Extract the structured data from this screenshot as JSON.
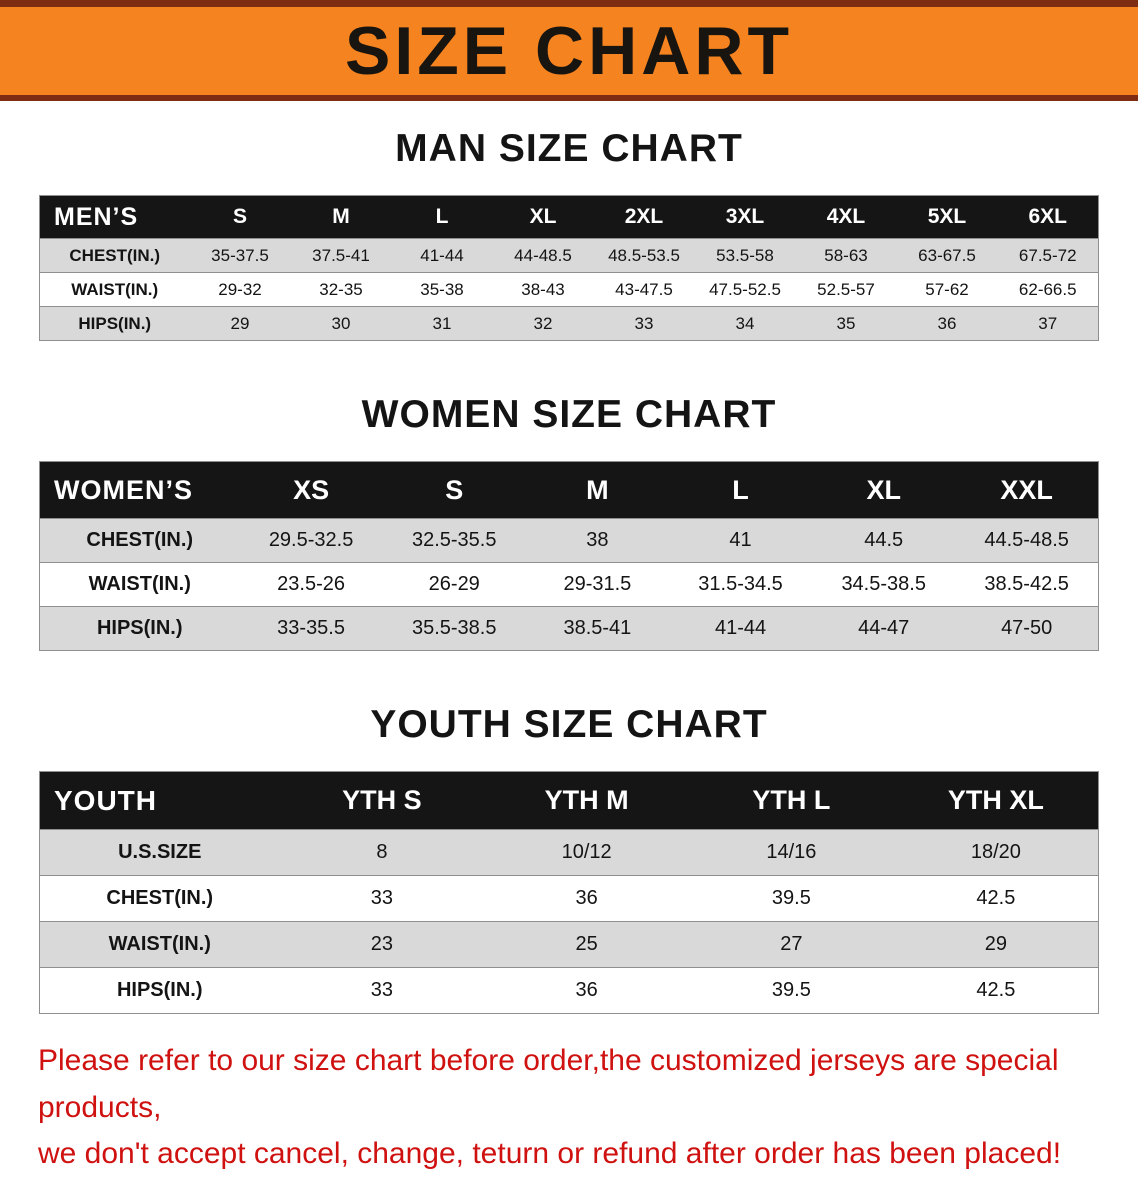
{
  "banner": {
    "title": "SIZE CHART",
    "bg_color": "#f5831f",
    "border_color": "#7f2d12"
  },
  "colors": {
    "header_bar": "#151515",
    "row_shade": "#d9d9d9",
    "note_red": "#cf1110"
  },
  "men": {
    "heading": "MAN SIZE CHART",
    "corner": "MEN’S",
    "sizes": [
      "S",
      "M",
      "L",
      "XL",
      "2XL",
      "3XL",
      "4XL",
      "5XL",
      "6XL"
    ],
    "rows": [
      {
        "label": "CHEST(IN.)",
        "values": [
          "35-37.5",
          "37.5-41",
          "41-44",
          "44-48.5",
          "48.5-53.5",
          "53.5-58",
          "58-63",
          "63-67.5",
          "67.5-72"
        ]
      },
      {
        "label": "WAIST(IN.)",
        "values": [
          "29-32",
          "32-35",
          "35-38",
          "38-43",
          "43-47.5",
          "47.5-52.5",
          "52.5-57",
          "57-62",
          "62-66.5"
        ]
      },
      {
        "label": "HIPS(IN.)",
        "values": [
          "29",
          "30",
          "31",
          "32",
          "33",
          "34",
          "35",
          "36",
          "37"
        ]
      }
    ]
  },
  "women": {
    "heading": "WOMEN SIZE CHART",
    "corner": "WOMEN’S",
    "sizes": [
      "XS",
      "S",
      "M",
      "L",
      "XL",
      "XXL"
    ],
    "rows": [
      {
        "label": "CHEST(IN.)",
        "values": [
          "29.5-32.5",
          "32.5-35.5",
          "38",
          "41",
          "44.5",
          "44.5-48.5"
        ]
      },
      {
        "label": "WAIST(IN.)",
        "values": [
          "23.5-26",
          "26-29",
          "29-31.5",
          "31.5-34.5",
          "34.5-38.5",
          "38.5-42.5"
        ]
      },
      {
        "label": "HIPS(IN.)",
        "values": [
          "33-35.5",
          "35.5-38.5",
          "38.5-41",
          "41-44",
          "44-47",
          "47-50"
        ]
      }
    ]
  },
  "youth": {
    "heading": "YOUTH SIZE CHART",
    "corner": "YOUTH",
    "sizes": [
      "YTH S",
      "YTH M",
      "YTH L",
      "YTH XL"
    ],
    "rows": [
      {
        "label": "U.S.SIZE",
        "values": [
          "8",
          "10/12",
          "14/16",
          "18/20"
        ]
      },
      {
        "label": "CHEST(IN.)",
        "values": [
          "33",
          "36",
          "39.5",
          "42.5"
        ]
      },
      {
        "label": "WAIST(IN.)",
        "values": [
          "23",
          "25",
          "27",
          "29"
        ]
      },
      {
        "label": "HIPS(IN.)",
        "values": [
          "33",
          "36",
          "39.5",
          "42.5"
        ]
      }
    ]
  },
  "footer": {
    "line1": "Please refer to our size chart before order,the customized jerseys are special products,",
    "line2": "we don't accept cancel, change, teturn or refund after order has been placed!"
  }
}
